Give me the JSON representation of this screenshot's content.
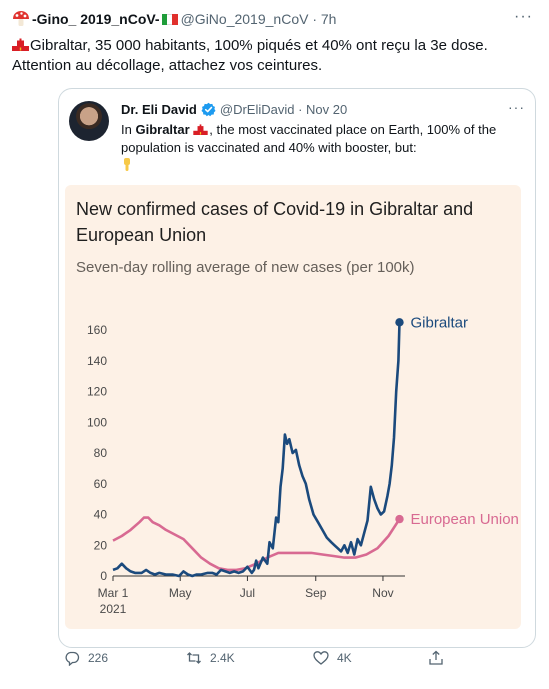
{
  "tweet": {
    "author_name": "-Gino_ 2019_nCoV-",
    "handle_time": "@GiNo_2019_nCoV · 7h",
    "more": "···",
    "text_line1": "Gibraltar, 35 000 habitants, 100% piqués et 40% ont reçu la 3e dose.",
    "text_line2": "Attention au décollage, attachez vos ceintures."
  },
  "quote": {
    "name": "Dr. Eli David",
    "handle_date": "@DrEliDavid · Nov 20",
    "more": "···",
    "text_in": "In ",
    "text_bold": "Gibraltar",
    "text_rest": ", the most vaccinated place on Earth, 100% of the population is vaccinated and 40% with booster, but:"
  },
  "actions": {
    "replies": "226",
    "retweets": "2.4K",
    "likes": "4K"
  },
  "colors": {
    "gibraltar": "#1b4a7d",
    "eu": "#d86a92",
    "chart_bg": "#fdf1e6"
  },
  "chart_data": {
    "type": "line",
    "title": "New confirmed cases of Covid-19 in Gibraltar and European Union",
    "title_line1": "New confirmed cases of Covid-19 in Gibraltar and",
    "title_line2": "European Union",
    "subtitle": "Seven-day rolling average of new cases (per 100k)",
    "x_tick_labels": [
      "Mar 1",
      "May",
      "Jul",
      "Sep",
      "Nov"
    ],
    "x_tick_sublabel": "2021",
    "y_ticks": [
      0,
      20,
      40,
      60,
      80,
      100,
      120,
      140,
      160
    ],
    "ylim": [
      0,
      165
    ],
    "x_unit": "days since Mar 1, 2021",
    "xlim": [
      0,
      265
    ],
    "grid": false,
    "series": [
      {
        "name": "Gibraltar",
        "points": [
          [
            0,
            4
          ],
          [
            4,
            5
          ],
          [
            8,
            8
          ],
          [
            12,
            5
          ],
          [
            16,
            3
          ],
          [
            20,
            2
          ],
          [
            26,
            2
          ],
          [
            30,
            4
          ],
          [
            34,
            2
          ],
          [
            38,
            1
          ],
          [
            42,
            2
          ],
          [
            48,
            1
          ],
          [
            54,
            1
          ],
          [
            60,
            0
          ],
          [
            64,
            3
          ],
          [
            68,
            1
          ],
          [
            72,
            0
          ],
          [
            76,
            1
          ],
          [
            80,
            1
          ],
          [
            86,
            2
          ],
          [
            90,
            2
          ],
          [
            94,
            1
          ],
          [
            98,
            4
          ],
          [
            102,
            3
          ],
          [
            106,
            2
          ],
          [
            110,
            3
          ],
          [
            114,
            2
          ],
          [
            118,
            3
          ],
          [
            122,
            6
          ],
          [
            126,
            2
          ],
          [
            128,
            4
          ],
          [
            130,
            10
          ],
          [
            132,
            5
          ],
          [
            136,
            12
          ],
          [
            140,
            8
          ],
          [
            142,
            22
          ],
          [
            145,
            18
          ],
          [
            148,
            38
          ],
          [
            150,
            35
          ],
          [
            152,
            58
          ],
          [
            154,
            70
          ],
          [
            156,
            92
          ],
          [
            158,
            86
          ],
          [
            160,
            89
          ],
          [
            163,
            80
          ],
          [
            166,
            82
          ],
          [
            169,
            72
          ],
          [
            172,
            65
          ],
          [
            175,
            60
          ],
          [
            178,
            50
          ],
          [
            182,
            40
          ],
          [
            186,
            35
          ],
          [
            190,
            30
          ],
          [
            194,
            25
          ],
          [
            198,
            22
          ],
          [
            201,
            20
          ],
          [
            204,
            18
          ],
          [
            207,
            16
          ],
          [
            210,
            20
          ],
          [
            213,
            15
          ],
          [
            216,
            22
          ],
          [
            219,
            14
          ],
          [
            222,
            24
          ],
          [
            225,
            20
          ],
          [
            228,
            28
          ],
          [
            231,
            36
          ],
          [
            234,
            58
          ],
          [
            237,
            50
          ],
          [
            240,
            44
          ],
          [
            243,
            40
          ],
          [
            246,
            42
          ],
          [
            249,
            52
          ],
          [
            251,
            60
          ],
          [
            253,
            72
          ],
          [
            255,
            90
          ],
          [
            257,
            120
          ],
          [
            259,
            140
          ],
          [
            260,
            165
          ]
        ]
      },
      {
        "name": "European Union",
        "points": [
          [
            0,
            23
          ],
          [
            8,
            26
          ],
          [
            16,
            30
          ],
          [
            24,
            35
          ],
          [
            28,
            38
          ],
          [
            32,
            38
          ],
          [
            36,
            35
          ],
          [
            42,
            33
          ],
          [
            48,
            30
          ],
          [
            56,
            27
          ],
          [
            64,
            24
          ],
          [
            72,
            18
          ],
          [
            80,
            12
          ],
          [
            88,
            8
          ],
          [
            96,
            5
          ],
          [
            104,
            4
          ],
          [
            112,
            4
          ],
          [
            120,
            5
          ],
          [
            130,
            8
          ],
          [
            140,
            12
          ],
          [
            150,
            15
          ],
          [
            160,
            15
          ],
          [
            170,
            15
          ],
          [
            180,
            15
          ],
          [
            190,
            14
          ],
          [
            200,
            13
          ],
          [
            210,
            12
          ],
          [
            220,
            12
          ],
          [
            230,
            14
          ],
          [
            240,
            18
          ],
          [
            250,
            26
          ],
          [
            260,
            37
          ]
        ]
      }
    ]
  }
}
